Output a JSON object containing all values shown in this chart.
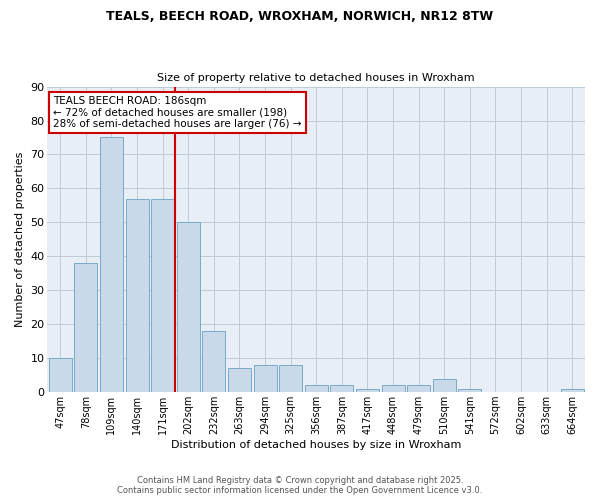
{
  "title": "TEALS, BEECH ROAD, WROXHAM, NORWICH, NR12 8TW",
  "subtitle": "Size of property relative to detached houses in Wroxham",
  "xlabel": "Distribution of detached houses by size in Wroxham",
  "ylabel": "Number of detached properties",
  "categories": [
    "47sqm",
    "78sqm",
    "109sqm",
    "140sqm",
    "171sqm",
    "202sqm",
    "232sqm",
    "263sqm",
    "294sqm",
    "325sqm",
    "356sqm",
    "387sqm",
    "417sqm",
    "448sqm",
    "479sqm",
    "510sqm",
    "541sqm",
    "572sqm",
    "602sqm",
    "633sqm",
    "664sqm"
  ],
  "values": [
    10,
    38,
    75,
    57,
    57,
    50,
    18,
    7,
    8,
    8,
    2,
    2,
    1,
    2,
    2,
    4,
    1,
    0,
    0,
    0,
    1
  ],
  "bar_color": "#c9d9ea",
  "bar_edge_color": "#7aaac8",
  "vline_x_index": 4.5,
  "vline_color": "#cc0000",
  "annotation_title": "TEALS BEECH ROAD: 186sqm",
  "annotation_line1": "← 72% of detached houses are smaller (198)",
  "annotation_line2": "28% of semi-detached houses are larger (76) →",
  "annotation_box_edge_color": "#cc0000",
  "ylim": [
    0,
    90
  ],
  "yticks": [
    0,
    10,
    20,
    30,
    40,
    50,
    60,
    70,
    80,
    90
  ],
  "footer1": "Contains HM Land Registry data © Crown copyright and database right 2025.",
  "footer2": "Contains public sector information licensed under the Open Government Licence v3.0.",
  "bg_color": "#ffffff",
  "plot_bg_color": "#e8eef5",
  "grid_color": "#c0cad4",
  "title_fontsize": 9,
  "subtitle_fontsize": 8
}
